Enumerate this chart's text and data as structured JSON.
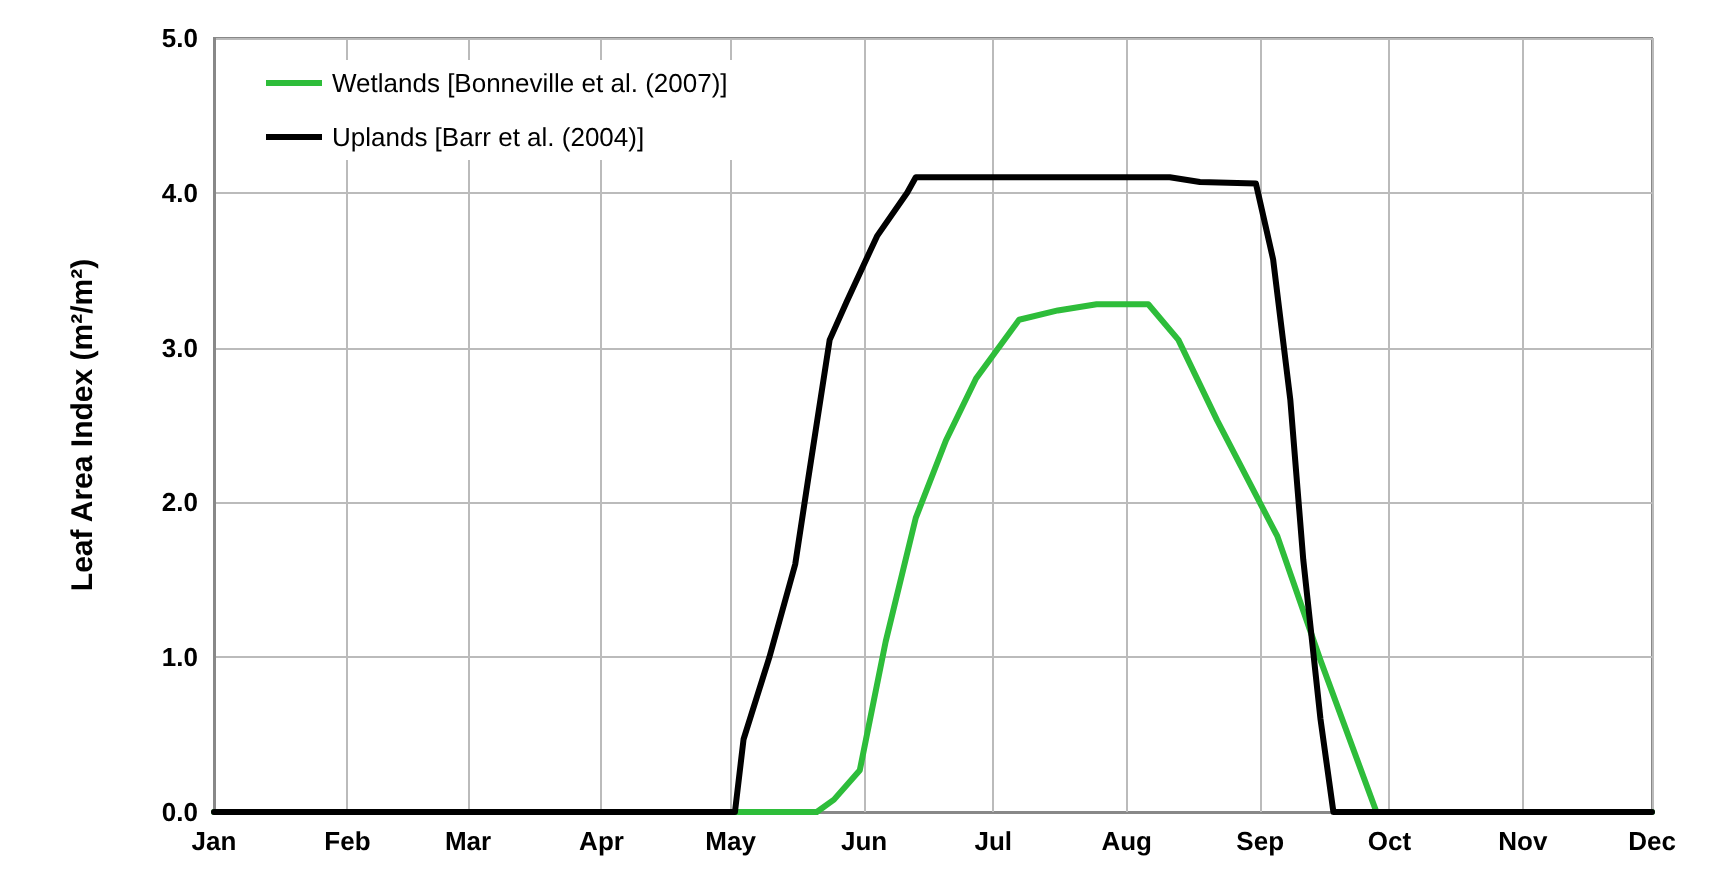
{
  "chart_data": {
    "type": "line",
    "ylabel": "Leaf Area Index (m²/m²)",
    "xlim": [
      "--01-01",
      "--12-01"
    ],
    "xticks": [
      {
        "value": "--01-01",
        "label": "Jan"
      },
      {
        "value": "--02-01",
        "label": "Feb"
      },
      {
        "value": "--03-01",
        "label": "Mar"
      },
      {
        "value": "--04-01",
        "label": "Apr"
      },
      {
        "value": "--05-01",
        "label": "May"
      },
      {
        "value": "--06-01",
        "label": "Jun"
      },
      {
        "value": "--07-01",
        "label": "Jul"
      },
      {
        "value": "--08-01",
        "label": "Aug"
      },
      {
        "value": "--09-01",
        "label": "Sep"
      },
      {
        "value": "--10-01",
        "label": "Oct"
      },
      {
        "value": "--11-01",
        "label": "Nov"
      },
      {
        "value": "--12-01",
        "label": "Dec"
      }
    ],
    "ylim": [
      0,
      5
    ],
    "yticks": [
      {
        "value": 0,
        "label": "0.0"
      },
      {
        "value": 1,
        "label": "1.0"
      },
      {
        "value": 2,
        "label": "2.0"
      },
      {
        "value": 3,
        "label": "3.0"
      },
      {
        "value": 4,
        "label": "4.0"
      },
      {
        "value": 5,
        "label": "5.0"
      }
    ],
    "grid": true,
    "legend": "top left",
    "marker": "none",
    "line_style": "solid",
    "series": [
      {
        "name": "Wetlands [Bonneville et al. (2007)]",
        "color": "#2ebd3a",
        "x": [
          "--01-01",
          "--05-21",
          "--05-25",
          "--05-31",
          "--06-06",
          "--06-13",
          "--06-20",
          "--06-27",
          "--07-07",
          "--07-16",
          "--07-25",
          "--08-06",
          "--08-13",
          "--08-22",
          "--09-05",
          "--09-15",
          "--09-28",
          "--12-01"
        ],
        "values": [
          0,
          0,
          0.08,
          0.27,
          1.1,
          1.9,
          2.4,
          2.8,
          3.18,
          3.24,
          3.28,
          3.28,
          3.05,
          2.53,
          1.78,
          0.98,
          0,
          0
        ]
      },
      {
        "name": "Uplands [Barr et al. (2004)]",
        "color": "#000000",
        "x": [
          "--01-01",
          "--05-02",
          "--05-04",
          "--05-10",
          "--05-16",
          "--05-19",
          "--05-24",
          "--05-28",
          "--06-04",
          "--06-11",
          "--06-13",
          "--08-11",
          "--08-18",
          "--08-31",
          "--09-04",
          "--09-08",
          "--09-11",
          "--09-15",
          "--09-18",
          "--12-01"
        ],
        "values": [
          0,
          0,
          0.47,
          1.0,
          1.6,
          2.15,
          3.05,
          3.3,
          3.72,
          4.0,
          4.1,
          4.1,
          4.07,
          4.06,
          3.57,
          2.66,
          1.63,
          0.6,
          0,
          0
        ]
      }
    ]
  }
}
